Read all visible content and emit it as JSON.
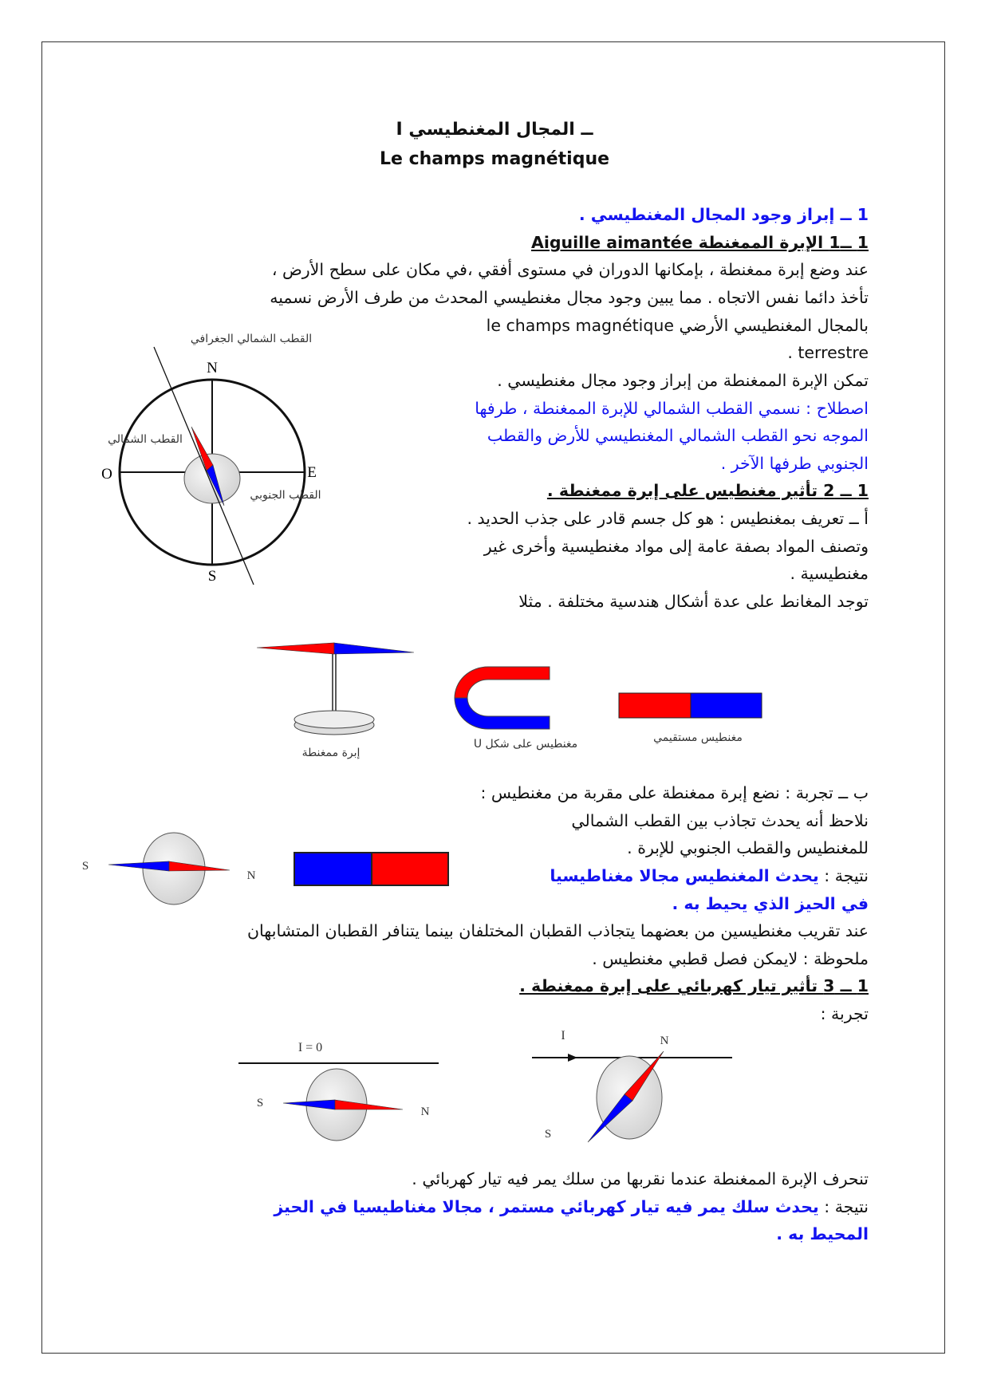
{
  "title": {
    "line1": "I ــ المجال المغنطيسي",
    "line2": "Le champs magnétique"
  },
  "lines": [
    "1 ــ إبراز وجود المجال المغنطيسي .",
    "1 ــ1 الإبرة الممغنطة Aiguille aimantée",
    "عند وضع إبرة ممغنطة ، بإمكانها الدوران في مستوى أفقي ،في مكان على سطح الأرض ،",
    "تأخذ دائما نفس الاتجاه . مما يبين وجود مجال مغنطيسي المحدث من طرف الأرض نسميه",
    "بالمجال المغنطيسي الأرضي  le champs magnétique",
    "terrestre .",
    "تمكن الإبرة الممغنطة من إبراز وجود مجال مغنطيسي .",
    "اصطلاح : نسمي القطب الشمالي للإبرة الممغنطة ، طرفها",
    "الموجه نحو القطب الشمالي المغنطيسي للأرض والقطب",
    "الجنوبي طرفها الآخر .",
    "1 ــ 2 تأثير مغنطيس على إبرة ممغنطة .",
    "أ ــ تعريف بمغنطيس : هو كل جسم قادر على جذب الحديد .",
    "وتصنف المواد بصفة عامة إلى مواد مغنطيسية وأخرى غير",
    "مغنطيسية .",
    "توجد المغانط على عدة أشكال هندسية مختلفة . مثلا",
    "ب ــ تجربة : نضع إبرة ممغنطة على مقربة من مغنطيس :",
    "نلاحظ أنه يحدث تجاذب بين القطب الشمالي",
    "للمغنطيس والقطب الجنوبي للإبرة .",
    "نتيجة : ",
    "يحدث المغنطيس مجالا مغناطيسيا",
    "في الحيز الذي يحيط به .",
    "عند تقريب مغنطيسين من بعضهما يتجاذب القطبان المختلفان بينما يتنافر القطبان المتشابهان",
    "ملحوظة : لايمكن فصل قطبي مغنطيس .",
    "1 ــ 3 تأثير تيار كهربائي على إبرة ممغنطة .",
    "تجربة :",
    "تنحرف الإبرة الممغنطة عندما نقربها من سلك يمر فيه تيار كهربائي .",
    "نتيجة : ",
    "يحدث سلك يمر فيه تيار كهربائي مستمر ، مجالا مغناطيسيا في الحيز",
    "المحيط به ."
  ],
  "figures": {
    "compass": {
      "geo_north": "القطب الشمالي الجغرافي",
      "north_pole": "القطب الشمالي",
      "south_pole": "القطب الجنوبي",
      "N": "N",
      "S": "S",
      "O": "O",
      "E": "E"
    },
    "magnets": {
      "needle": "إبرة ممغنطة",
      "u_magnet": "مغنطيس على شكل U",
      "bar_magnet": "مغنطيس مستقيمي"
    },
    "attraction": {
      "S": "S",
      "N": "N"
    },
    "current": {
      "i_zero": "I = 0",
      "i": "I",
      "S": "S",
      "N": "N"
    }
  },
  "colors": {
    "north": "#ff0000",
    "south": "#0000ff",
    "emphasis": "#1414f0"
  }
}
